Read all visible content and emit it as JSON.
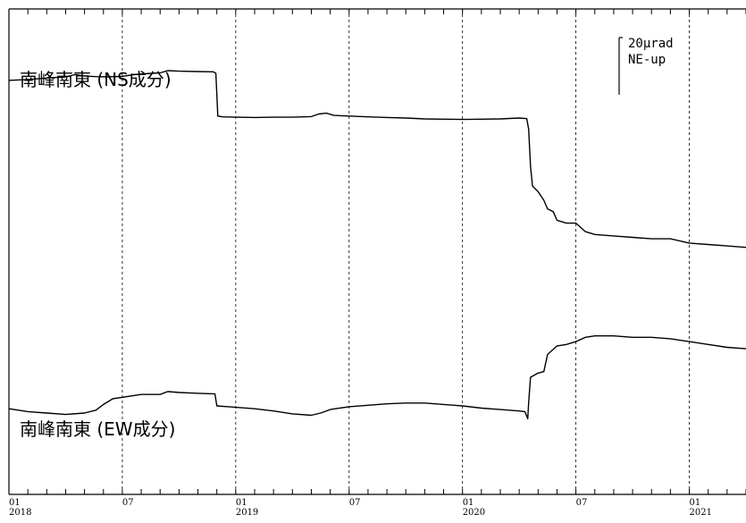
{
  "chart_data": {
    "type": "line",
    "title": "",
    "xlabel": "",
    "ylabel": "",
    "scale_bar": {
      "value_label": "20μrad",
      "direction_label": "NE-up",
      "magnitude": 20
    },
    "x_ticks": [
      {
        "month": "01",
        "year": "2018",
        "t": 0
      },
      {
        "month": "07",
        "year": "",
        "t": 6
      },
      {
        "month": "01",
        "year": "2019",
        "t": 12
      },
      {
        "month": "07",
        "year": "",
        "t": 18
      },
      {
        "month": "01",
        "year": "2020",
        "t": 24
      },
      {
        "month": "07",
        "year": "",
        "t": 30
      },
      {
        "month": "01",
        "year": "2021",
        "t": 36
      }
    ],
    "xlim": [
      0,
      39
    ],
    "ylim": [
      -145,
      25
    ],
    "grid": {
      "vertical_dashed": true,
      "minor_ticks_per_month": true
    },
    "series": [
      {
        "name": "南峰南東(NS成分)",
        "label": "南峰南東 (NS成分)",
        "points": [
          [
            0,
            0
          ],
          [
            1,
            0.3
          ],
          [
            2,
            0.8
          ],
          [
            3,
            1.2
          ],
          [
            3.5,
            2
          ],
          [
            4,
            1.5
          ],
          [
            4.6,
            1.3
          ],
          [
            5.2,
            1.2
          ],
          [
            6,
            1.4
          ],
          [
            6.6,
            2
          ],
          [
            7.2,
            2.3
          ],
          [
            8,
            2.6
          ],
          [
            8.4,
            3.4
          ],
          [
            9,
            3.2
          ],
          [
            9.9,
            3.1
          ],
          [
            10.8,
            3
          ],
          [
            10.95,
            2.5
          ],
          [
            11.05,
            -12.5
          ],
          [
            11.3,
            -12.8
          ],
          [
            12,
            -12.9
          ],
          [
            13,
            -13
          ],
          [
            14,
            -12.9
          ],
          [
            15,
            -12.9
          ],
          [
            16,
            -12.7
          ],
          [
            16.4,
            -11.8
          ],
          [
            16.8,
            -11.5
          ],
          [
            17.2,
            -12.3
          ],
          [
            18,
            -12.5
          ],
          [
            19,
            -12.8
          ],
          [
            20,
            -13
          ],
          [
            21,
            -13.2
          ],
          [
            22,
            -13.5
          ],
          [
            23,
            -13.6
          ],
          [
            24,
            -13.7
          ],
          [
            25,
            -13.6
          ],
          [
            26,
            -13.5
          ],
          [
            27,
            -13.2
          ],
          [
            27.4,
            -13.4
          ],
          [
            27.5,
            -17
          ],
          [
            27.6,
            -30
          ],
          [
            27.7,
            -37
          ],
          [
            28,
            -39
          ],
          [
            28.3,
            -42
          ],
          [
            28.5,
            -45
          ],
          [
            28.8,
            -46
          ],
          [
            29,
            -49
          ],
          [
            29.5,
            -50
          ],
          [
            30,
            -50
          ],
          [
            30.5,
            -53
          ],
          [
            31,
            -54
          ],
          [
            32,
            -54.5
          ],
          [
            33,
            -55
          ],
          [
            34,
            -55.5
          ],
          [
            35,
            -55.5
          ],
          [
            36,
            -57
          ],
          [
            37,
            -57.5
          ],
          [
            38,
            -58
          ],
          [
            39,
            -58.5
          ]
        ]
      },
      {
        "name": "南峰南東(EW成分)",
        "label": "南峰南東 (EW成分)",
        "points": [
          [
            0,
            -115
          ],
          [
            1,
            -116
          ],
          [
            2,
            -116.5
          ],
          [
            3,
            -117
          ],
          [
            4,
            -116.5
          ],
          [
            4.6,
            -115.5
          ],
          [
            5,
            -113.5
          ],
          [
            5.5,
            -111.5
          ],
          [
            6,
            -111
          ],
          [
            6.5,
            -110.5
          ],
          [
            7,
            -110
          ],
          [
            8,
            -110
          ],
          [
            8.4,
            -109
          ],
          [
            9,
            -109.3
          ],
          [
            10,
            -109.6
          ],
          [
            10.9,
            -109.8
          ],
          [
            11,
            -114
          ],
          [
            12,
            -114.5
          ],
          [
            13,
            -115
          ],
          [
            14,
            -115.8
          ],
          [
            15,
            -116.8
          ],
          [
            16,
            -117.3
          ],
          [
            16.5,
            -116.5
          ],
          [
            17,
            -115.3
          ],
          [
            18,
            -114.3
          ],
          [
            19,
            -113.8
          ],
          [
            20,
            -113.3
          ],
          [
            21,
            -113
          ],
          [
            22,
            -113
          ],
          [
            23,
            -113.5
          ],
          [
            24,
            -114
          ],
          [
            25,
            -114.8
          ],
          [
            26,
            -115.3
          ],
          [
            27,
            -115.8
          ],
          [
            27.3,
            -116
          ],
          [
            27.45,
            -118.5
          ],
          [
            27.5,
            -113
          ],
          [
            27.6,
            -104
          ],
          [
            28,
            -102.5
          ],
          [
            28.3,
            -102
          ],
          [
            28.5,
            -96
          ],
          [
            29,
            -93
          ],
          [
            29.5,
            -92.5
          ],
          [
            30,
            -91.5
          ],
          [
            30.5,
            -90
          ],
          [
            31,
            -89.5
          ],
          [
            32,
            -89.5
          ],
          [
            33,
            -90
          ],
          [
            34,
            -90
          ],
          [
            35,
            -90.5
          ],
          [
            36,
            -91.5
          ],
          [
            37,
            -92.5
          ],
          [
            38,
            -93.5
          ],
          [
            39,
            -94
          ]
        ]
      }
    ],
    "colors": {
      "line": "#000000",
      "grid": "#000000",
      "background": "#ffffff"
    }
  }
}
